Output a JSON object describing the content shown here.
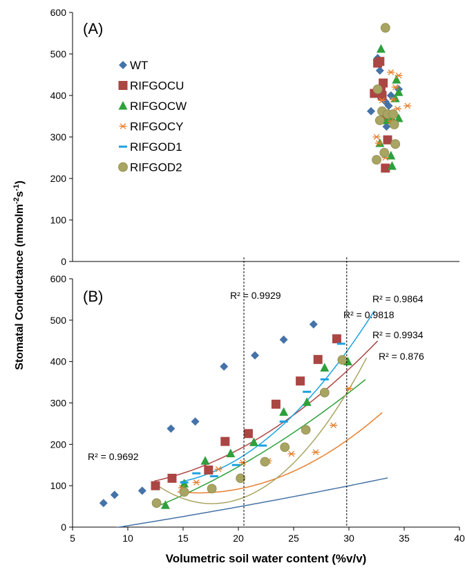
{
  "chart_data": {
    "type": "scatter",
    "xlabel": "Volumetric soil water content (%v/v)",
    "ylabel_main": "Stomatal Conductance (mmolm",
    "ylabel_sup1": "-2",
    "ylabel_mid": "s",
    "ylabel_sup2": "-1",
    "ylabel_end": ")",
    "xlim": [
      5,
      40
    ],
    "x_ticks": [
      "5",
      "10",
      "15",
      "20",
      "25",
      "30",
      "35",
      "40"
    ],
    "y_ticks_a": [
      "0",
      "100",
      "200",
      "300",
      "400",
      "500",
      "600"
    ],
    "y_ticks_b": [
      "0",
      "100",
      "200",
      "300",
      "400",
      "500",
      "600"
    ],
    "ylim": [
      0,
      600
    ],
    "grid": false,
    "legend_position": "top-left of panel A",
    "reference_lines_x": [
      20.5,
      29.8
    ],
    "panels": [
      {
        "label": "(A)",
        "series": [
          {
            "name": "WT",
            "color": "#4572A7",
            "marker": "diamond",
            "points": [
              [
                32.6,
                490
              ],
              [
                32.8,
                460
              ],
              [
                33.3,
                385
              ],
              [
                33.4,
                325
              ],
              [
                32.0,
                362
              ],
              [
                33.6,
                375
              ],
              [
                33.8,
                400
              ],
              [
                34.5,
                415
              ]
            ]
          },
          {
            "name": "RIFGOCU",
            "color": "#AA4643",
            "marker": "square",
            "points": [
              [
                32.6,
                478
              ],
              [
                32.8,
                482
              ],
              [
                33.1,
                430
              ],
              [
                32.9,
                410
              ],
              [
                32.3,
                405
              ],
              [
                33.2,
                350
              ],
              [
                33.5,
                293
              ],
              [
                33.3,
                225
              ],
              [
                33.0,
                400
              ]
            ]
          },
          {
            "name": "RIFGOCW",
            "color": "#2EA03C",
            "marker": "triangle",
            "points": [
              [
                32.9,
                512
              ],
              [
                34.3,
                438
              ],
              [
                34.5,
                408
              ],
              [
                34.2,
                393
              ],
              [
                33.9,
                345
              ],
              [
                34.5,
                345
              ],
              [
                32.8,
                285
              ],
              [
                33.8,
                255
              ],
              [
                33.9,
                230
              ],
              [
                33.4,
                340
              ]
            ]
          },
          {
            "name": "RIFGOCY",
            "color": "#E87E2C",
            "marker": "star",
            "points": [
              [
                33.8,
                456
              ],
              [
                34.5,
                448
              ],
              [
                34.2,
                420
              ],
              [
                33.0,
                388
              ],
              [
                34.4,
                368
              ],
              [
                35.3,
                375
              ],
              [
                32.5,
                300
              ],
              [
                32.7,
                285
              ],
              [
                33.8,
                338
              ],
              [
                34.0,
                390
              ],
              [
                33.3,
                250
              ]
            ]
          },
          {
            "name": "RIFGOD1",
            "color": "#1BA2E0",
            "marker": "dash",
            "points": []
          },
          {
            "name": "RIFGOD2",
            "color": "#A8A462",
            "marker": "circle",
            "points": [
              [
                33.3,
                563
              ],
              [
                32.6,
                415
              ],
              [
                33.0,
                362
              ],
              [
                33.5,
                355
              ],
              [
                32.8,
                340
              ],
              [
                34.1,
                330
              ],
              [
                34.2,
                283
              ],
              [
                33.2,
                262
              ],
              [
                32.5,
                245
              ],
              [
                34.0,
                355
              ]
            ]
          }
        ]
      },
      {
        "label": "(B)",
        "series": [
          {
            "name": "WT",
            "color": "#4572A7",
            "marker": "diamond",
            "points": [
              [
                7.8,
                58
              ],
              [
                8.8,
                78
              ],
              [
                11.3,
                88
              ],
              [
                13.9,
                238
              ],
              [
                16.1,
                255
              ],
              [
                18.7,
                388
              ],
              [
                21.5,
                415
              ],
              [
                24.1,
                453
              ],
              [
                26.8,
                490
              ]
            ],
            "r2": "R² = 0.9692",
            "fit": [
              0.026,
              3.78,
              -37.0
            ],
            "fit_range": [
              7.7,
              33.5
            ]
          },
          {
            "name": "RIFGOCU",
            "color": "#AA4643",
            "marker": "square",
            "points": [
              [
                12.5,
                100
              ],
              [
                14.0,
                118
              ],
              [
                17.3,
                138
              ],
              [
                18.8,
                207
              ],
              [
                20.9,
                226
              ],
              [
                23.4,
                297
              ],
              [
                25.6,
                353
              ],
              [
                27.2,
                405
              ],
              [
                28.9,
                455
              ]
            ],
            "r2": "R² = 0.9818",
            "fit": [
              0.538,
              -7.45,
              121.0
            ],
            "fit_range": [
              12.4,
              32.6
            ]
          },
          {
            "name": "RIFGOCW",
            "color": "#2EA03C",
            "marker": "triangle",
            "points": [
              [
                13.4,
                53
              ],
              [
                15.1,
                105
              ],
              [
                17.0,
                160
              ],
              [
                19.3,
                178
              ],
              [
                21.4,
                205
              ],
              [
                24.1,
                278
              ],
              [
                26.2,
                302
              ],
              [
                27.8,
                385
              ],
              [
                29.9,
                400
              ]
            ],
            "r2": "R² = 0.9929",
            "fit": [
              0.28,
              3.9,
              -44.0
            ],
            "fit_range": [
              13.0,
              31.5
            ]
          },
          {
            "name": "RIFGOCY",
            "color": "#E87E2C",
            "marker": "star",
            "points": [
              [
                14.9,
                95
              ],
              [
                16.2,
                108
              ],
              [
                18.2,
                140
              ],
              [
                20.4,
                156
              ],
              [
                22.7,
                160
              ],
              [
                24.8,
                177
              ],
              [
                27.0,
                181
              ],
              [
                28.6,
                246
              ],
              [
                30.0,
                335
              ]
            ],
            "r2": "R² = 0.876",
            "fit": [
              0.7,
              -22.9,
              270.0
            ],
            "fit_range": [
              14.5,
              33.0
            ]
          },
          {
            "name": "RIFGOD1",
            "color": "#1BA2E0",
            "marker": "dash",
            "points": [
              [
                15.1,
                108
              ],
              [
                16.2,
                130
              ],
              [
                17.8,
                123
              ],
              [
                19.8,
                150
              ],
              [
                22.2,
                197
              ],
              [
                24.1,
                255
              ],
              [
                26.2,
                327
              ],
              [
                27.8,
                357
              ],
              [
                29.3,
                443
              ]
            ],
            "r2": "R² = 0.9864",
            "fit": [
              1.055,
              -26.1,
              265.0
            ],
            "fit_range": [
              14.8,
              32.3
            ]
          },
          {
            "name": "RIFGOD2",
            "color": "#A8A462",
            "marker": "circle",
            "points": [
              [
                12.6,
                58
              ],
              [
                15.1,
                85
              ],
              [
                17.6,
                93
              ],
              [
                20.2,
                118
              ],
              [
                22.4,
                158
              ],
              [
                24.2,
                193
              ],
              [
                26.1,
                235
              ],
              [
                27.8,
                325
              ],
              [
                29.4,
                404
              ]
            ],
            "r2": "R² = 0.9934",
            "fit": [
              1.8,
              -63.4,
              615.0
            ],
            "fit_range": [
              12.6,
              31.6
            ]
          }
        ]
      }
    ]
  }
}
